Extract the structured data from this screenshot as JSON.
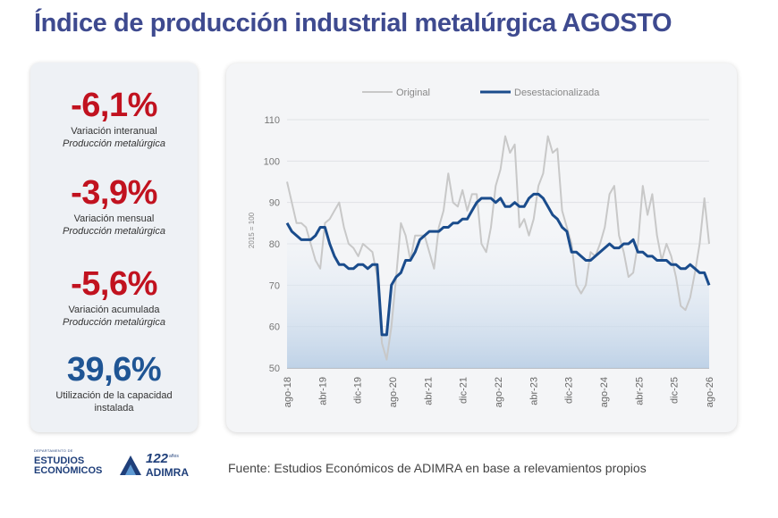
{
  "title": "Índice de producción industrial metalúrgica AGOSTO",
  "stats": [
    {
      "value": "-6,1%",
      "label1": "Variación interanual",
      "label2": "Producción metalúrgica",
      "color": "#c1121f"
    },
    {
      "value": "-3,9%",
      "label1": "Variación mensual",
      "label2": "Producción metalúrgica",
      "color": "#c1121f"
    },
    {
      "value": "-5,6%",
      "label1": "Variación acumulada",
      "label2": "Producción metalúrgica",
      "color": "#c1121f"
    },
    {
      "value": "39,6%",
      "label1": "Utilización de la capacidad",
      "label2": "instalada",
      "color": "#1f5594"
    }
  ],
  "chart_data": {
    "type": "line",
    "ylabel": "2015 = 100",
    "ylim": [
      50,
      110
    ],
    "yticks": [
      50,
      60,
      70,
      80,
      90,
      100,
      110
    ],
    "x_start": "ago-18",
    "x_end": "ago-26",
    "xticks": [
      "ago-18",
      "abr-19",
      "dic-19",
      "ago-20",
      "abr-21",
      "dic-21",
      "ago-22",
      "abr-23",
      "dic-23",
      "ago-24",
      "abr-25",
      "dic-25",
      "ago-26"
    ],
    "grid": "horizontal",
    "legend_position": "top",
    "series": [
      {
        "name": "Original",
        "color": "#c8c8c8",
        "values": [
          95,
          90,
          85,
          85,
          84,
          80,
          76,
          74,
          85,
          86,
          88,
          90,
          84,
          80,
          79,
          77,
          80,
          79,
          78,
          72,
          56,
          52,
          60,
          72,
          85,
          82,
          76,
          82,
          82,
          82,
          78,
          74,
          84,
          88,
          97,
          90,
          89,
          93,
          88,
          92,
          92,
          80,
          78,
          84,
          94,
          98,
          106,
          102,
          104,
          84,
          86,
          82,
          86,
          94,
          97,
          106,
          102,
          103,
          88,
          84,
          80,
          70,
          68,
          70,
          78,
          77,
          80,
          84,
          92,
          94,
          82,
          78,
          72,
          73,
          80,
          94,
          87,
          92,
          82,
          76,
          80,
          77,
          72,
          65,
          64,
          67,
          73,
          80,
          91,
          80
        ]
      },
      {
        "name": "Desestacionalizada",
        "color": "#1a4c8c",
        "values": [
          85,
          83,
          82,
          81,
          81,
          81,
          82,
          84,
          84,
          80,
          77,
          75,
          75,
          74,
          74,
          75,
          75,
          74,
          75,
          75,
          58,
          58,
          70,
          72,
          73,
          76,
          76,
          78,
          81,
          82,
          83,
          83,
          83,
          84,
          84,
          85,
          85,
          86,
          86,
          88,
          90,
          91,
          91,
          91,
          90,
          91,
          89,
          89,
          90,
          89,
          89,
          91,
          92,
          92,
          91,
          89,
          87,
          86,
          84,
          83,
          78,
          78,
          77,
          76,
          76,
          77,
          78,
          79,
          80,
          79,
          79,
          80,
          80,
          81,
          78,
          78,
          77,
          77,
          76,
          76,
          76,
          75,
          75,
          74,
          74,
          75,
          74,
          73,
          73,
          70
        ]
      }
    ]
  },
  "logos": {
    "dept_small": "DEPARTAMENTO DE",
    "dept_line1": "ESTUDIOS",
    "dept_line2": "ECONÓMICOS",
    "years": "122",
    "years_suffix": "años",
    "org": "ADIMRA"
  },
  "source": "Fuente: Estudios Económicos de ADIMRA en base a relevamientos propios"
}
